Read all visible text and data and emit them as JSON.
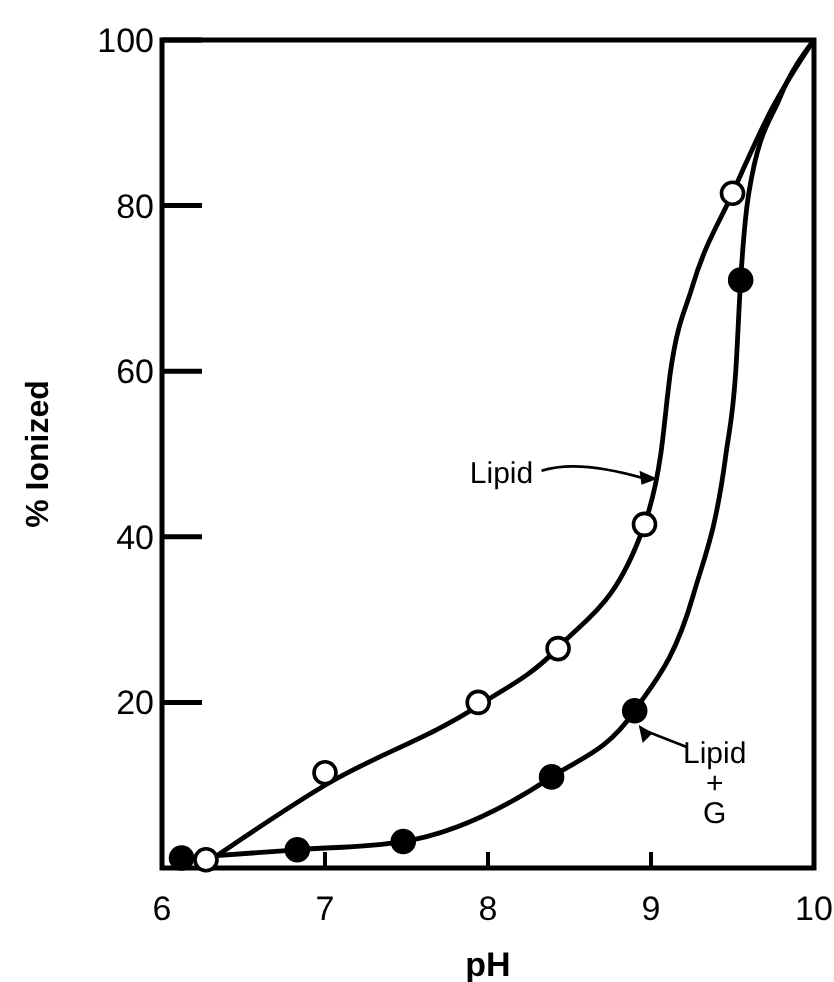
{
  "chart_data": {
    "type": "line",
    "xlabel": "pH",
    "ylabel": "% Ionized",
    "xlim": [
      6,
      10
    ],
    "ylim": [
      0,
      100
    ],
    "xticks": [
      6,
      7,
      8,
      9,
      10
    ],
    "yticks": [
      20,
      40,
      60,
      80,
      100
    ],
    "grid": false,
    "series": [
      {
        "color": "#000000",
        "marker": "none",
        "x": [
          6.3,
          7,
          7.94,
          8.43,
          8.96,
          9.06,
          9.12,
          9.25,
          9.5,
          9.75,
          10
        ],
        "values": [
          1,
          10,
          19.6,
          26.6,
          41.5,
          50,
          60,
          70,
          81.5,
          92,
          100
        ]
      },
      {
        "color": "#000000",
        "marker": "none",
        "x": [
          6.12,
          6.83,
          7.48,
          8.39,
          8.9,
          9.26,
          9.46,
          9.52,
          9.55,
          9.6,
          9.79,
          10
        ],
        "values": [
          1.2,
          2.2,
          3.2,
          11,
          19,
          33,
          50,
          60,
          71,
          81.5,
          93,
          100
        ]
      },
      {
        "type": "scatter",
        "color": "#ffffff",
        "marker": "circle",
        "x": [
          6.27,
          7.0,
          7.94,
          8.43,
          8.96,
          9.5
        ],
        "values": [
          1,
          11.5,
          20,
          26.5,
          41.5,
          81.5
        ]
      },
      {
        "type": "scatter",
        "color": "#000000",
        "marker": "circle",
        "x": [
          6.12,
          6.83,
          7.48,
          8.39,
          8.9,
          9.55
        ],
        "values": [
          1.2,
          2.2,
          3.2,
          11,
          19,
          71
        ]
      }
    ],
    "annotations": [
      {
        "text": "Lipid",
        "x": 9.04,
        "y": 47
      },
      {
        "text": "Lipid + G",
        "x": 8.9,
        "y": 18
      }
    ]
  }
}
